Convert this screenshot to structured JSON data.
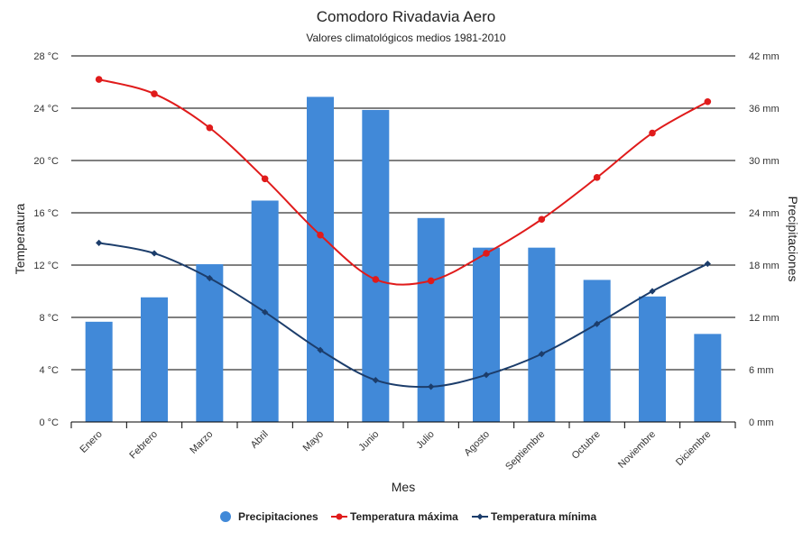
{
  "chart_data": {
    "type": "bar",
    "title": "Comodoro Rivadavia Aero",
    "subtitle": "Valores climatológicos medios 1981-2010",
    "xlabel": "Mes",
    "ylabel_left": "Temperatura",
    "ylabel_right": "Precipitaciones",
    "categories": [
      "Enero",
      "Febrero",
      "Marzo",
      "Abril",
      "Mayo",
      "Junio",
      "Julio",
      "Agosto",
      "Septiembre",
      "Octubre",
      "Noviembre",
      "Diciembre"
    ],
    "y_left": {
      "ticks": [
        0,
        4,
        8,
        12,
        16,
        20,
        24,
        28
      ],
      "tick_labels": [
        "0 °C",
        "4 °C",
        "8 °C",
        "12 °C",
        "16 °C",
        "20 °C",
        "24 °C",
        "28 °C"
      ],
      "ylim": [
        0,
        28
      ]
    },
    "y_right": {
      "ticks": [
        0,
        6,
        12,
        18,
        24,
        30,
        36,
        42
      ],
      "tick_labels": [
        "0 mm",
        "6 mm",
        "12 mm",
        "18 mm",
        "24 mm",
        "30 mm",
        "36 mm",
        "42 mm"
      ],
      "ylim": [
        0,
        42
      ]
    },
    "grid": true,
    "legend_position": "bottom",
    "series": [
      {
        "name": "Precipitaciones",
        "type": "bar",
        "axis": "right",
        "color": "#4189d8",
        "values": [
          11.5,
          14.3,
          18.1,
          25.4,
          37.3,
          35.8,
          23.4,
          20.0,
          20.0,
          16.3,
          14.4,
          10.1
        ]
      },
      {
        "name": "Temperatura máxima",
        "type": "line",
        "axis": "left",
        "color": "#e01b1b",
        "values": [
          26.2,
          25.1,
          22.5,
          18.6,
          14.3,
          10.9,
          10.8,
          12.9,
          15.5,
          18.7,
          22.1,
          24.5
        ]
      },
      {
        "name": "Temperatura mínima",
        "type": "line",
        "axis": "left",
        "color": "#1c3d6b",
        "values": [
          13.7,
          12.9,
          11.0,
          8.4,
          5.5,
          3.2,
          2.7,
          3.6,
          5.2,
          7.5,
          10.0,
          12.1
        ]
      }
    ]
  }
}
